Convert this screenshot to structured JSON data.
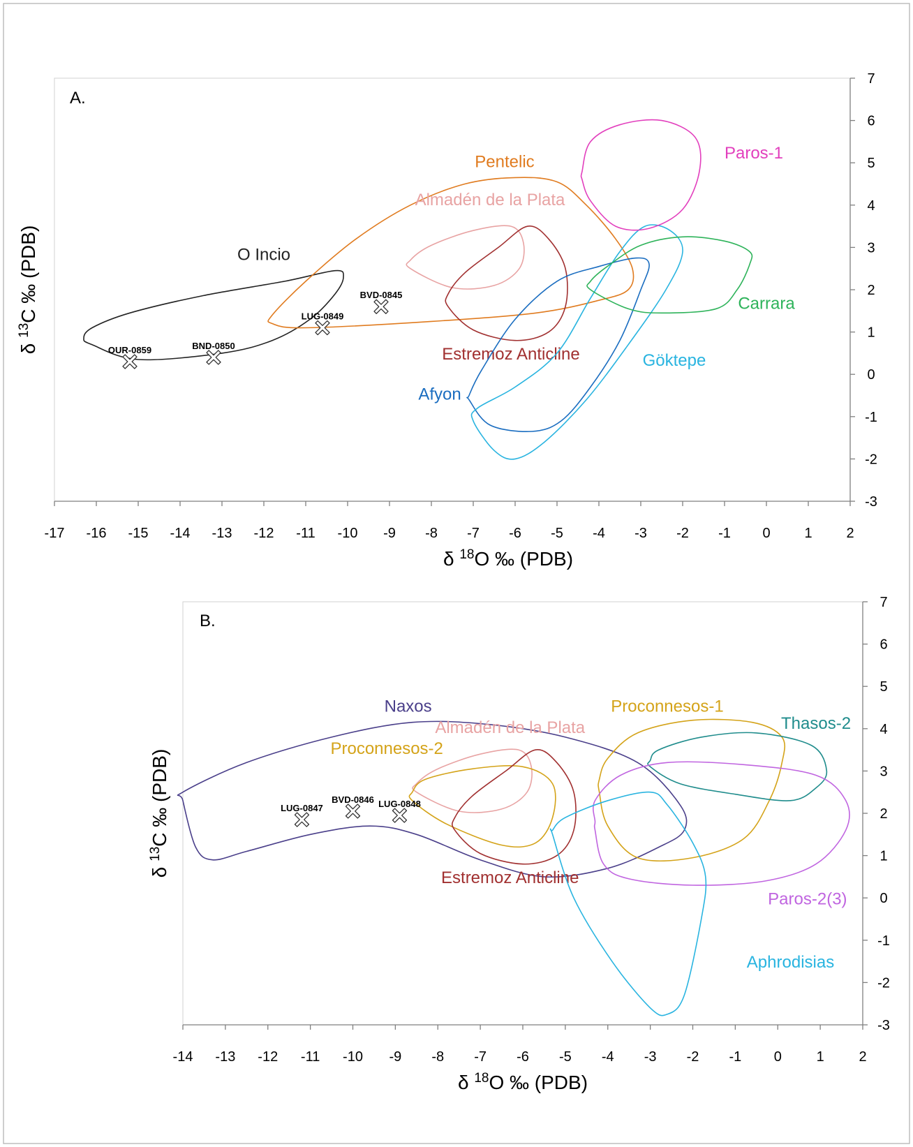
{
  "chart_data": [
    {
      "type": "scatter",
      "panel": "A.",
      "xlabel_prefix": "δ ",
      "xlabel_sup": "18",
      "xlabel_suffix": "O ‰ (PDB)",
      "ylabel_prefix": "δ ",
      "ylabel_sup": "13",
      "ylabel_suffix": "C ‰ (PDB)",
      "xlim": [
        -17,
        2
      ],
      "ylim": [
        -3,
        7
      ],
      "xticks": [
        "-17",
        "-16",
        "-15",
        "-14",
        "-13",
        "-12",
        "-11",
        "-10",
        "-9",
        "-8",
        "-7",
        "-6",
        "-5",
        "-4",
        "-3",
        "-2",
        "-1",
        "0",
        "1",
        "2"
      ],
      "yticks": [
        "7",
        "6",
        "5",
        "4",
        "3",
        "2",
        "1",
        "0",
        "-1",
        "-2",
        "-3"
      ],
      "y_axis_position": "right",
      "grid": false,
      "fields": [
        {
          "name": "O Incio",
          "color": "#222222",
          "label_at": [
            -12,
            2.7
          ],
          "points": [
            [
              -16.1,
              0.7
            ],
            [
              -15.0,
              0.35
            ],
            [
              -13.0,
              0.5
            ],
            [
              -11.8,
              0.8
            ],
            [
              -10.9,
              1.3
            ],
            [
              -10.3,
              1.9
            ],
            [
              -10.1,
              2.3
            ],
            [
              -10.3,
              2.45
            ],
            [
              -11.5,
              2.2
            ],
            [
              -13.5,
              1.85
            ],
            [
              -15.2,
              1.45
            ],
            [
              -16.1,
              1.1
            ],
            [
              -16.3,
              0.85
            ]
          ]
        },
        {
          "name": "Pentelic",
          "color": "#e07b1f",
          "label_at": [
            -6.25,
            4.9
          ],
          "points": [
            [
              -11.8,
              1.2
            ],
            [
              -11.0,
              1.1
            ],
            [
              -8.0,
              1.25
            ],
            [
              -5.5,
              1.45
            ],
            [
              -4.0,
              1.75
            ],
            [
              -3.3,
              2.0
            ],
            [
              -3.2,
              2.5
            ],
            [
              -3.6,
              3.2
            ],
            [
              -4.3,
              4.0
            ],
            [
              -5.0,
              4.55
            ],
            [
              -6.0,
              4.65
            ],
            [
              -7.2,
              4.5
            ],
            [
              -8.5,
              4.0
            ],
            [
              -9.8,
              3.2
            ],
            [
              -11.0,
              2.2
            ],
            [
              -11.8,
              1.4
            ]
          ]
        },
        {
          "name": "Almadén de la Plata",
          "color": "#e8a3a3",
          "label_at": [
            -6.6,
            4.0
          ],
          "points": [
            [
              -8.5,
              2.5
            ],
            [
              -7.5,
              2.05
            ],
            [
              -6.5,
              2.1
            ],
            [
              -5.9,
              2.5
            ],
            [
              -5.8,
              3.1
            ],
            [
              -6.1,
              3.5
            ],
            [
              -7.0,
              3.4
            ],
            [
              -8.0,
              3.05
            ],
            [
              -8.5,
              2.7
            ]
          ]
        },
        {
          "name": "Estremoz Anticline",
          "color": "#a13030",
          "label_at": [
            -6.1,
            0.35
          ],
          "points": [
            [
              -7.6,
              1.6
            ],
            [
              -7.0,
              1.05
            ],
            [
              -6.0,
              0.8
            ],
            [
              -5.2,
              1.0
            ],
            [
              -4.8,
              1.6
            ],
            [
              -4.8,
              2.5
            ],
            [
              -5.2,
              3.2
            ],
            [
              -5.7,
              3.5
            ],
            [
              -6.4,
              3.0
            ],
            [
              -7.2,
              2.4
            ],
            [
              -7.6,
              1.9
            ]
          ]
        },
        {
          "name": "Afyon",
          "color": "#1a6dc0",
          "label_at": [
            -7.8,
            -0.6
          ],
          "points": [
            [
              -7.1,
              -0.6
            ],
            [
              -6.6,
              -1.2
            ],
            [
              -5.6,
              -1.35
            ],
            [
              -4.9,
              -1.1
            ],
            [
              -4.2,
              -0.3
            ],
            [
              -3.5,
              0.8
            ],
            [
              -3.0,
              2.0
            ],
            [
              -2.8,
              2.6
            ],
            [
              -3.1,
              2.75
            ],
            [
              -4.0,
              2.55
            ],
            [
              -5.0,
              2.2
            ],
            [
              -6.0,
              1.3
            ],
            [
              -6.8,
              0.1
            ],
            [
              -7.1,
              -0.5
            ]
          ]
        },
        {
          "name": "Göktepe",
          "color": "#29b4e0",
          "label_at": [
            -2.2,
            0.2
          ],
          "points": [
            [
              -7.0,
              -1.1
            ],
            [
              -6.5,
              -1.8
            ],
            [
              -6.0,
              -2.0
            ],
            [
              -5.3,
              -1.6
            ],
            [
              -4.3,
              -0.6
            ],
            [
              -3.3,
              0.7
            ],
            [
              -2.4,
              2.0
            ],
            [
              -2.0,
              2.9
            ],
            [
              -2.3,
              3.4
            ],
            [
              -2.9,
              3.5
            ],
            [
              -3.5,
              2.9
            ],
            [
              -4.2,
              1.8
            ],
            [
              -5.0,
              0.5
            ],
            [
              -6.0,
              -0.3
            ],
            [
              -6.9,
              -0.8
            ]
          ]
        },
        {
          "name": "Paros-1",
          "color": "#e23fbd",
          "label_at": [
            -0.3,
            5.1
          ],
          "points": [
            [
              -4.4,
              4.8
            ],
            [
              -4.2,
              5.5
            ],
            [
              -3.5,
              5.9
            ],
            [
              -2.5,
              6.0
            ],
            [
              -1.7,
              5.6
            ],
            [
              -1.6,
              4.8
            ],
            [
              -2.0,
              3.9
            ],
            [
              -2.8,
              3.45
            ],
            [
              -3.6,
              3.5
            ],
            [
              -4.2,
              4.1
            ],
            [
              -4.4,
              4.6
            ]
          ]
        },
        {
          "name": "Carrara",
          "color": "#2eb35a",
          "label_at": [
            0.0,
            1.55
          ],
          "points": [
            [
              -4.2,
              2.0
            ],
            [
              -3.3,
              1.55
            ],
            [
              -2.5,
              1.45
            ],
            [
              -1.2,
              1.55
            ],
            [
              -0.7,
              2.0
            ],
            [
              -0.4,
              2.6
            ],
            [
              -0.4,
              2.9
            ],
            [
              -1.0,
              3.15
            ],
            [
              -2.0,
              3.25
            ],
            [
              -3.0,
              3.05
            ],
            [
              -3.8,
              2.55
            ],
            [
              -4.2,
              2.2
            ]
          ]
        }
      ],
      "samples": [
        {
          "label": "OUR-0859",
          "x": -15.2,
          "y": 0.3
        },
        {
          "label": "BND-0850",
          "x": -13.2,
          "y": 0.4
        },
        {
          "label": "LUG-0849",
          "x": -10.6,
          "y": 1.1
        },
        {
          "label": "BVD-0845",
          "x": -9.2,
          "y": 1.6
        }
      ]
    },
    {
      "type": "scatter",
      "panel": "B.",
      "xlabel_prefix": "δ ",
      "xlabel_sup": "18",
      "xlabel_suffix": "O ‰ (PDB)",
      "ylabel_prefix": "δ ",
      "ylabel_sup": "13",
      "ylabel_suffix": "C ‰ (PDB)",
      "xlim": [
        -14,
        2
      ],
      "ylim": [
        -3,
        7
      ],
      "xticks": [
        "-14",
        "-13",
        "-12",
        "-11",
        "-10",
        "-9",
        "-8",
        "-7",
        "-6",
        "-5",
        "-4",
        "-3",
        "-2",
        "-1",
        "0",
        "1",
        "2"
      ],
      "yticks": [
        "7",
        "6",
        "5",
        "4",
        "3",
        "2",
        "1",
        "0",
        "-1",
        "-2",
        "-3"
      ],
      "y_axis_position": "right",
      "grid": false,
      "fields": [
        {
          "name": "Naxos",
          "color": "#4a3f8a",
          "label_at": [
            -8.7,
            4.4
          ],
          "points": [
            [
              -14.0,
              2.3
            ],
            [
              -13.7,
              1.2
            ],
            [
              -13.3,
              0.9
            ],
            [
              -12.5,
              1.1
            ],
            [
              -11.0,
              1.5
            ],
            [
              -9.6,
              1.7
            ],
            [
              -8.5,
              1.5
            ],
            [
              -7.0,
              0.9
            ],
            [
              -5.5,
              0.5
            ],
            [
              -4.0,
              0.7
            ],
            [
              -2.8,
              1.2
            ],
            [
              -2.2,
              1.6
            ],
            [
              -2.3,
              2.2
            ],
            [
              -3.3,
              3.2
            ],
            [
              -5.0,
              3.8
            ],
            [
              -6.8,
              4.1
            ],
            [
              -8.6,
              4.15
            ],
            [
              -10.5,
              3.8
            ],
            [
              -12.5,
              3.2
            ],
            [
              -14.0,
              2.5
            ]
          ]
        },
        {
          "name": "Almadén de la Plata",
          "color": "#e8a3a3",
          "label_at": [
            -6.3,
            3.9
          ],
          "points": [
            [
              -8.5,
              2.5
            ],
            [
              -7.5,
              2.05
            ],
            [
              -6.5,
              2.1
            ],
            [
              -5.9,
              2.5
            ],
            [
              -5.8,
              3.1
            ],
            [
              -6.1,
              3.5
            ],
            [
              -7.0,
              3.4
            ],
            [
              -8.0,
              3.05
            ],
            [
              -8.5,
              2.7
            ]
          ]
        },
        {
          "name": "Proconnesos-2",
          "color": "#d4a319",
          "label_at": [
            -9.2,
            3.4
          ],
          "points": [
            [
              -8.6,
              2.3
            ],
            [
              -7.8,
              1.75
            ],
            [
              -6.5,
              1.25
            ],
            [
              -5.7,
              1.3
            ],
            [
              -5.3,
              1.9
            ],
            [
              -5.3,
              2.7
            ],
            [
              -6.0,
              3.1
            ],
            [
              -7.2,
              3.05
            ],
            [
              -8.3,
              2.8
            ],
            [
              -8.6,
              2.5
            ]
          ]
        },
        {
          "name": "Estremoz Anticline",
          "color": "#a13030",
          "label_at": [
            -6.3,
            0.35
          ],
          "points": [
            [
              -7.6,
              1.6
            ],
            [
              -7.0,
              1.05
            ],
            [
              -6.0,
              0.8
            ],
            [
              -5.2,
              1.0
            ],
            [
              -4.8,
              1.6
            ],
            [
              -4.8,
              2.5
            ],
            [
              -5.2,
              3.2
            ],
            [
              -5.7,
              3.5
            ],
            [
              -6.4,
              3.0
            ],
            [
              -7.2,
              2.4
            ],
            [
              -7.6,
              1.9
            ]
          ]
        },
        {
          "name": "Proconnesos-1",
          "color": "#d4a319",
          "label_at": [
            -2.6,
            4.4
          ],
          "points": [
            [
              -4.2,
              2.5
            ],
            [
              -4.0,
              1.7
            ],
            [
              -3.3,
              0.95
            ],
            [
              -2.0,
              0.95
            ],
            [
              -0.8,
              1.4
            ],
            [
              -0.2,
              2.3
            ],
            [
              0.1,
              3.2
            ],
            [
              0.1,
              3.8
            ],
            [
              -0.6,
              4.15
            ],
            [
              -2.0,
              4.2
            ],
            [
              -3.3,
              3.9
            ],
            [
              -4.0,
              3.3
            ],
            [
              -4.2,
              2.8
            ]
          ]
        },
        {
          "name": "Thasos-2",
          "color": "#1f8c8c",
          "label_at": [
            0.9,
            4.0
          ],
          "points": [
            [
              -3.0,
              3.1
            ],
            [
              -2.3,
              2.7
            ],
            [
              -1.0,
              2.45
            ],
            [
              0.3,
              2.3
            ],
            [
              0.9,
              2.6
            ],
            [
              1.15,
              3.0
            ],
            [
              0.8,
              3.6
            ],
            [
              -0.5,
              3.9
            ],
            [
              -1.8,
              3.8
            ],
            [
              -2.8,
              3.5
            ],
            [
              -3.0,
              3.25
            ]
          ]
        },
        {
          "name": "Paros-2(3)",
          "color": "#c065e0",
          "label_at": [
            0.7,
            -0.15
          ],
          "points": [
            [
              -4.3,
              1.6
            ],
            [
              -4.1,
              0.8
            ],
            [
              -3.5,
              0.45
            ],
            [
              -2.0,
              0.3
            ],
            [
              -0.3,
              0.4
            ],
            [
              0.9,
              0.8
            ],
            [
              1.6,
              1.6
            ],
            [
              1.6,
              2.3
            ],
            [
              0.9,
              2.9
            ],
            [
              -0.8,
              3.15
            ],
            [
              -2.6,
              3.2
            ],
            [
              -3.7,
              2.9
            ],
            [
              -4.3,
              2.3
            ],
            [
              -4.3,
              1.8
            ]
          ]
        },
        {
          "name": "Aphrodisias",
          "color": "#29b4e0",
          "label_at": [
            0.3,
            -1.65
          ],
          "points": [
            [
              -5.3,
              1.5
            ],
            [
              -4.8,
              0.0
            ],
            [
              -3.9,
              -1.5
            ],
            [
              -3.0,
              -2.6
            ],
            [
              -2.6,
              -2.75
            ],
            [
              -2.2,
              -2.3
            ],
            [
              -1.8,
              -0.5
            ],
            [
              -1.7,
              0.5
            ],
            [
              -2.0,
              1.3
            ],
            [
              -2.6,
              2.2
            ],
            [
              -3.0,
              2.5
            ],
            [
              -4.0,
              2.3
            ],
            [
              -5.0,
              1.9
            ],
            [
              -5.3,
              1.6
            ]
          ]
        }
      ],
      "samples": [
        {
          "label": "LUG-0847",
          "x": -11.2,
          "y": 1.85
        },
        {
          "label": "BVD-0846",
          "x": -10.0,
          "y": 2.05
        },
        {
          "label": "LUG-0848",
          "x": -8.9,
          "y": 1.95
        }
      ]
    }
  ]
}
